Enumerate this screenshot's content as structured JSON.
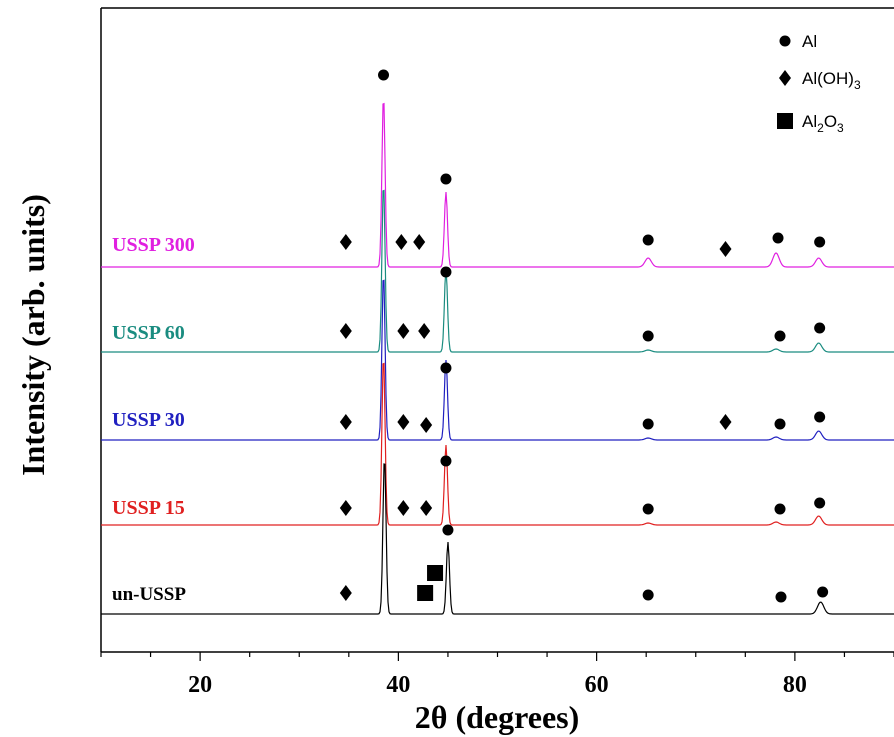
{
  "chart_data": {
    "type": "line",
    "xlabel": "2θ (degrees)",
    "ylabel": "Intensity (arb. units)",
    "xlim": [
      10,
      90
    ],
    "xticks": [
      20,
      40,
      60,
      80
    ],
    "grid": false,
    "legend_position": "top-right",
    "legend": [
      {
        "marker": "circle",
        "label": "Al"
      },
      {
        "marker": "diamond",
        "label": "Al(OH)3"
      },
      {
        "marker": "square",
        "label": "Al2O3"
      }
    ],
    "series": [
      {
        "name": "USSP 300",
        "color": "#e020e0",
        "peaks": [
          {
            "x": 38.5,
            "height": 172
          },
          {
            "x": 44.8,
            "height": 75
          },
          {
            "x": 65.2,
            "height": 9
          },
          {
            "x": 78.1,
            "height": 14
          },
          {
            "x": 82.4,
            "height": 9
          }
        ],
        "markers": [
          {
            "x": 34.7,
            "kind": "diamond"
          },
          {
            "x": 38.5,
            "kind": "circle"
          },
          {
            "x": 40.3,
            "kind": "diamond"
          },
          {
            "x": 42.1,
            "kind": "diamond"
          },
          {
            "x": 44.8,
            "kind": "circle"
          },
          {
            "x": 65.2,
            "kind": "circle"
          },
          {
            "x": 73.0,
            "kind": "diamond"
          },
          {
            "x": 78.3,
            "kind": "circle"
          },
          {
            "x": 82.5,
            "kind": "circle"
          }
        ]
      },
      {
        "name": "USSP 60",
        "color": "#1a8c80",
        "peaks": [
          {
            "x": 38.5,
            "height": 170
          },
          {
            "x": 44.8,
            "height": 83
          },
          {
            "x": 65.2,
            "height": 2
          },
          {
            "x": 78.1,
            "height": 3
          },
          {
            "x": 82.4,
            "height": 9
          }
        ],
        "markers": [
          {
            "x": 34.7,
            "kind": "diamond"
          },
          {
            "x": 40.5,
            "kind": "diamond"
          },
          {
            "x": 42.6,
            "kind": "diamond"
          },
          {
            "x": 44.8,
            "kind": "circle"
          },
          {
            "x": 65.2,
            "kind": "circle"
          },
          {
            "x": 78.5,
            "kind": "circle"
          },
          {
            "x": 82.5,
            "kind": "circle"
          }
        ]
      },
      {
        "name": "USSP 30",
        "color": "#2020c0",
        "peaks": [
          {
            "x": 38.5,
            "height": 168
          },
          {
            "x": 44.8,
            "height": 80
          },
          {
            "x": 65.2,
            "height": 2
          },
          {
            "x": 78.1,
            "height": 3
          },
          {
            "x": 82.4,
            "height": 9
          }
        ],
        "markers": [
          {
            "x": 34.7,
            "kind": "diamond"
          },
          {
            "x": 40.5,
            "kind": "diamond"
          },
          {
            "x": 42.8,
            "kind": "diamond"
          },
          {
            "x": 44.8,
            "kind": "circle"
          },
          {
            "x": 65.2,
            "kind": "circle"
          },
          {
            "x": 73.0,
            "kind": "diamond"
          },
          {
            "x": 78.5,
            "kind": "circle"
          },
          {
            "x": 82.5,
            "kind": "circle"
          }
        ]
      },
      {
        "name": "USSP 15",
        "color": "#e02020",
        "peaks": [
          {
            "x": 38.5,
            "height": 170
          },
          {
            "x": 44.8,
            "height": 80
          },
          {
            "x": 65.2,
            "height": 2
          },
          {
            "x": 78.1,
            "height": 3
          },
          {
            "x": 82.4,
            "height": 9
          }
        ],
        "markers": [
          {
            "x": 34.7,
            "kind": "diamond"
          },
          {
            "x": 40.5,
            "kind": "diamond"
          },
          {
            "x": 42.8,
            "kind": "diamond"
          },
          {
            "x": 44.8,
            "kind": "circle"
          },
          {
            "x": 65.2,
            "kind": "circle"
          },
          {
            "x": 78.5,
            "kind": "circle"
          },
          {
            "x": 82.5,
            "kind": "circle"
          }
        ]
      },
      {
        "name": "un-USSP",
        "color": "#000000",
        "peaks": [
          {
            "x": 38.6,
            "height": 158
          },
          {
            "x": 45.0,
            "height": 72
          },
          {
            "x": 82.6,
            "height": 12
          }
        ],
        "markers": [
          {
            "x": 34.7,
            "kind": "diamond"
          },
          {
            "x": 42.7,
            "kind": "square"
          },
          {
            "x": 43.7,
            "kind": "square"
          },
          {
            "x": 45.0,
            "kind": "circle"
          },
          {
            "x": 65.2,
            "kind": "circle"
          },
          {
            "x": 78.6,
            "kind": "circle"
          },
          {
            "x": 82.8,
            "kind": "circle"
          }
        ]
      }
    ]
  }
}
